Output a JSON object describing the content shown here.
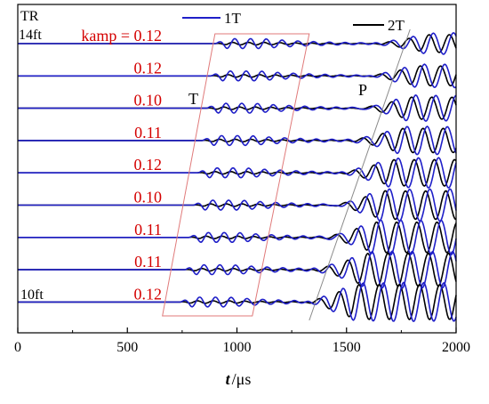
{
  "colors": {
    "series_1T": "#1f1fc8",
    "series_2T": "#000000",
    "kamp_text": "#d40000",
    "window_box": "#e07a7a",
    "p_line": "#8a8a8a"
  },
  "chart_data": {
    "type": "line",
    "title": "",
    "xlabel": "t",
    "xlabel_unit": "/μs",
    "ylabel": "",
    "xlim": [
      0,
      2000
    ],
    "xticks": [
      0,
      500,
      1000,
      1500,
      2000
    ],
    "xtick_labels": [
      "0",
      "500",
      "1000",
      "1500",
      "2000"
    ],
    "grid": false,
    "legend": {
      "placement": "top",
      "entries": [
        {
          "name": "1T",
          "color": "#1f1fc8"
        },
        {
          "name": "2T",
          "color": "#000000"
        }
      ]
    },
    "trace_labels": {
      "top_prefix": "TR",
      "top_depth": "14ft",
      "bottom_depth": "10ft"
    },
    "kamp_prefix": "kamp = ",
    "traces": [
      {
        "kamp": "0.12",
        "t_arrival_us": 900,
        "p_arrival_us": 1760
      },
      {
        "kamp": "0.12",
        "t_arrival_us": 880,
        "p_arrival_us": 1720
      },
      {
        "kamp": "0.10",
        "t_arrival_us": 860,
        "p_arrival_us": 1680
      },
      {
        "kamp": "0.11",
        "t_arrival_us": 840,
        "p_arrival_us": 1640
      },
      {
        "kamp": "0.12",
        "t_arrival_us": 820,
        "p_arrival_us": 1600
      },
      {
        "kamp": "0.10",
        "t_arrival_us": 800,
        "p_arrival_us": 1560
      },
      {
        "kamp": "0.11",
        "t_arrival_us": 780,
        "p_arrival_us": 1520
      },
      {
        "kamp": "0.11",
        "t_arrival_us": 760,
        "p_arrival_us": 1480
      },
      {
        "kamp": "0.12",
        "t_arrival_us": 740,
        "p_arrival_us": 1440
      }
    ],
    "annotations": [
      {
        "text": "T"
      },
      {
        "text": "P"
      }
    ],
    "t_window_us": {
      "top": [
        900,
        1330
      ],
      "bottom": [
        660,
        1070
      ]
    },
    "p_line_us": {
      "top": 1790,
      "bottom": 1330
    }
  }
}
